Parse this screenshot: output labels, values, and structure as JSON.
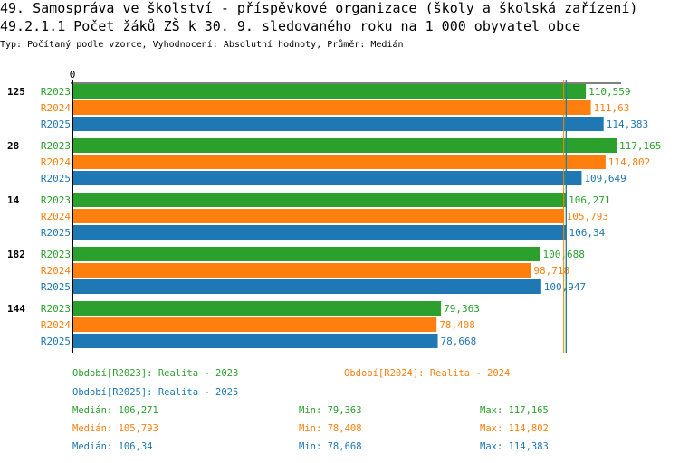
{
  "header": {
    "title": "49. Samospráva ve školství - příspěvkové organizace (školy a školská zařízení)",
    "subtitle": "49.2.1.1 Počet žáků ZŠ k 30. 9. sledovaného roku  na 1 000 obyvatel obce",
    "info": "Typ: Počítaný podle vzorce, Vyhodnocení: Absolutní hodnoty, Průměr: Medián"
  },
  "chart_data": {
    "type": "bar",
    "orientation": "horizontal",
    "axis_zero_label": "0",
    "xlim": [
      0,
      117.165
    ],
    "categories": [
      "125",
      "28",
      "14",
      "182",
      "144"
    ],
    "series": [
      {
        "name": "R2023",
        "color": "#2ca02c",
        "values": [
          110.559,
          117.165,
          106.271,
          100.688,
          79.363
        ],
        "labels": [
          "110,559",
          "117,165",
          "106,271",
          "100,688",
          "79,363"
        ],
        "median": 106.271
      },
      {
        "name": "R2024",
        "color": "#ff7f0e",
        "values": [
          111.63,
          114.802,
          105.793,
          98.718,
          78.408
        ],
        "labels": [
          "111,63",
          "114,802",
          "105,793",
          "98,718",
          "78,408"
        ],
        "median": 105.793
      },
      {
        "name": "R2025",
        "color": "#1f77b4",
        "values": [
          114.383,
          109.649,
          106.34,
          100.947,
          78.668
        ],
        "labels": [
          "114,383",
          "109,649",
          "106,34",
          "100,947",
          "78,668"
        ],
        "median": 106.34
      }
    ]
  },
  "legend": {
    "periods": [
      "Období[R2023]: Realita - 2023",
      "Období[R2024]: Realita - 2024",
      "Období[R2025]: Realita - 2025"
    ],
    "stats": [
      {
        "median": "Medián: 106,271",
        "min": "Min: 79,363",
        "max": "Max: 117,165"
      },
      {
        "median": "Medián: 105,793",
        "min": "Min: 78,408",
        "max": "Max: 114,802"
      },
      {
        "median": "Medián: 106,34",
        "min": "Min: 78,668",
        "max": "Max: 114,383"
      }
    ]
  }
}
